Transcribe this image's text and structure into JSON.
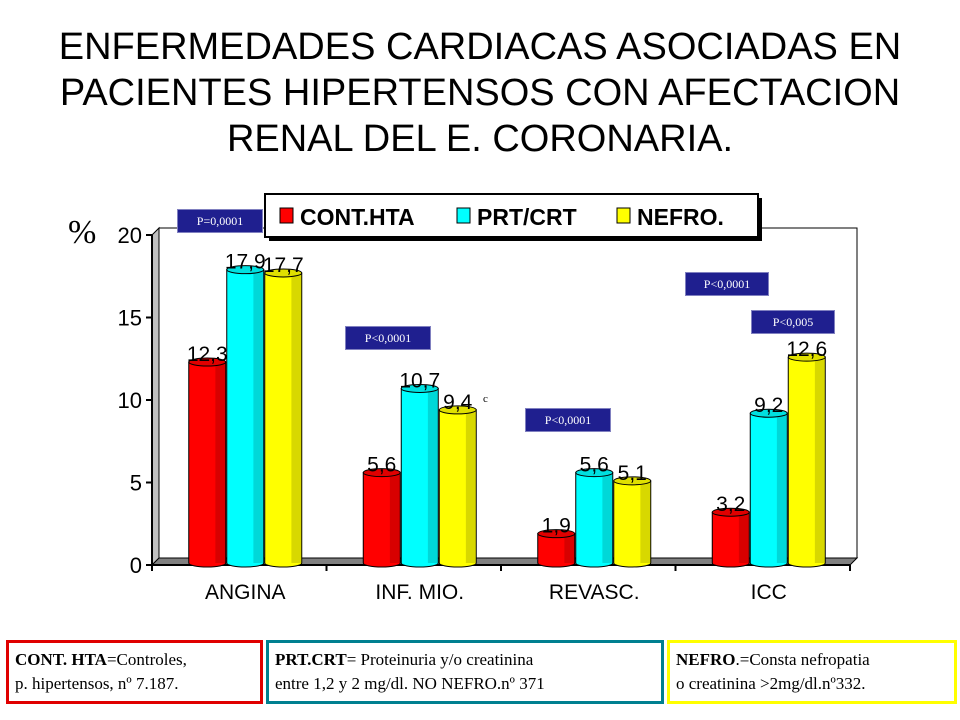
{
  "title_lines": [
    "ENFERMEDADES CARDIACAS ASOCIADAS EN",
    "PACIENTES HIPERTENSOS CON AFECTACION",
    "RENAL DEL E. CORONARIA."
  ],
  "chart_data": {
    "type": "bar",
    "categories": [
      "ANGINA",
      "INF. MIO.",
      "REVASC.",
      "ICC"
    ],
    "series": [
      {
        "name": "CONT.HTA",
        "color": "#ff0000",
        "values": [
          12.3,
          5.6,
          1.9,
          3.2
        ],
        "labels": [
          "12,3",
          "5,6",
          "1,9",
          "3,2"
        ]
      },
      {
        "name": "PRT/CRT",
        "color": "#00ffff",
        "values": [
          17.9,
          10.7,
          5.6,
          9.2
        ],
        "labels": [
          "17,9",
          "10,7",
          "5,6",
          "9,2"
        ]
      },
      {
        "name": "NEFRO.",
        "color": "#ffff00",
        "values": [
          17.7,
          9.4,
          5.1,
          12.6
        ],
        "labels": [
          "17,7",
          "9,4",
          "5,1",
          "12,6"
        ]
      }
    ],
    "ylabel": "%",
    "ylim": [
      0,
      20
    ],
    "yticks": [
      "0",
      "5",
      "10",
      "15",
      "20"
    ],
    "legend_position": "top",
    "grid": false,
    "stray_mark": "c"
  },
  "pvalues": [
    "P=0,0001",
    "P<0,0001",
    "P<0,0001",
    "P<0,0001",
    "P<0,005"
  ],
  "notes": [
    {
      "bold": "CONT. HTA",
      "text": "=Controles,",
      "line2": "p. hipertensos, nº 7.187.",
      "border": "#e00000"
    },
    {
      "bold": "PRT.CRT",
      "text": "= Proteinuria y/o creatinina",
      "line2": "entre 1,2 y 2 mg/dl. NO NEFRO.nº 371",
      "border": "#008090"
    },
    {
      "bold": "NEFRO",
      "text": ".=Consta nefropatia",
      "line2": "o creatinina >2mg/dl.nº332.",
      "border": "#ffff00"
    }
  ]
}
